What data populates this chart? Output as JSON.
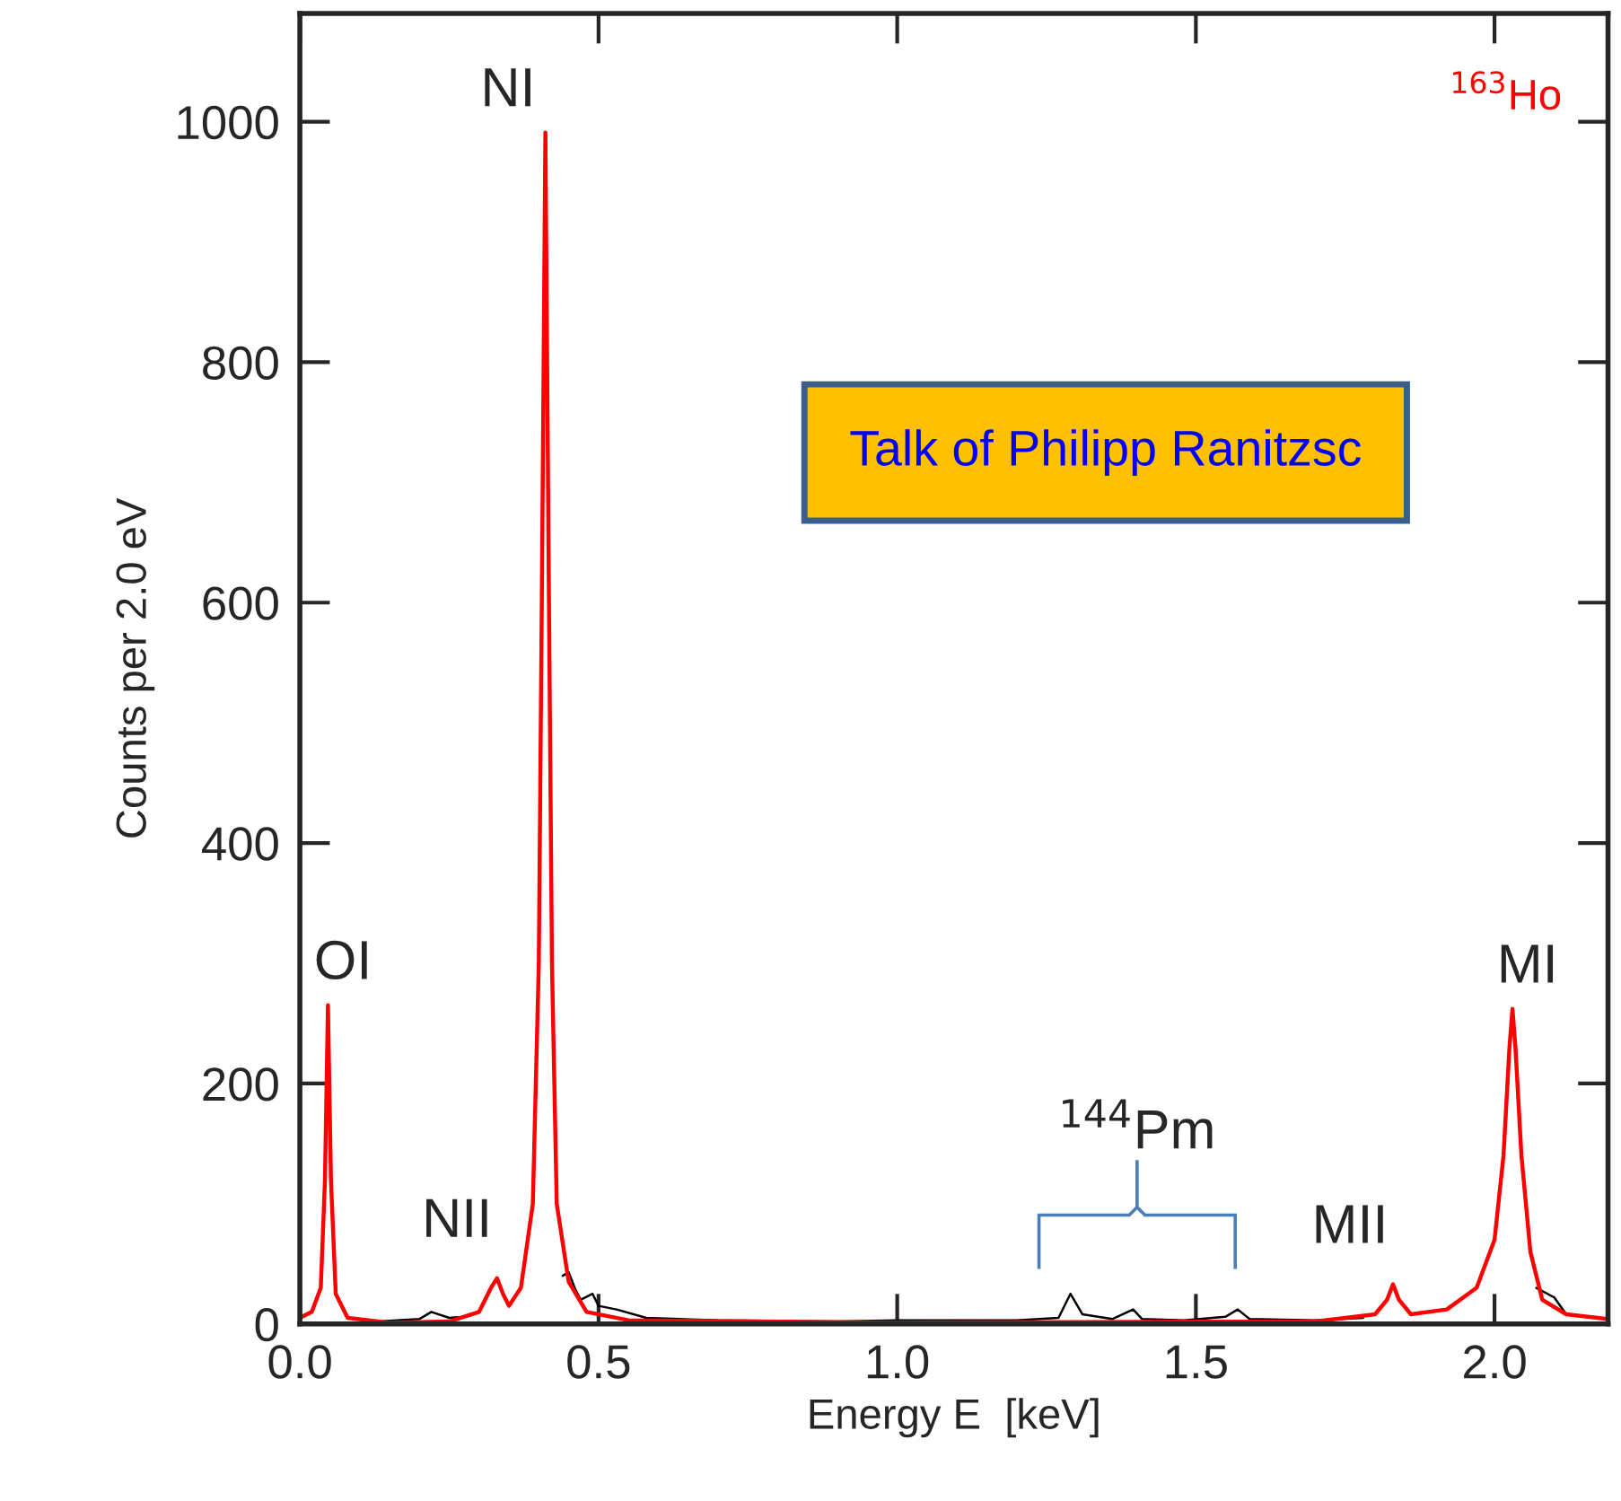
{
  "chart_data": {
    "type": "line",
    "xlabel": "Energy E  [keV]",
    "ylabel": "Counts per 2.0 eV",
    "xlim": [
      0,
      2.19
    ],
    "ylim": [
      0,
      1090
    ],
    "xticks": [
      {
        "value": 0,
        "label": "0.0"
      },
      {
        "value": 0.5,
        "label": "0.5"
      },
      {
        "value": 1,
        "label": "1.0"
      },
      {
        "value": 1.5,
        "label": "1.5"
      },
      {
        "value": 2,
        "label": "2.0"
      }
    ],
    "yticks": [
      0,
      200,
      400,
      600,
      800,
      1000
    ],
    "grid": false,
    "legend": false,
    "marker": "none",
    "line_style": "solid",
    "series": [
      {
        "color": "#000000",
        "x": [
          0.1,
          0.2,
          0.22,
          0.25,
          0.28,
          0.29,
          0.44,
          0.45,
          0.46,
          0.47,
          0.49,
          0.5,
          0.53,
          0.58,
          0.7,
          0.9,
          1.0,
          1.2,
          1.27,
          1.29,
          1.31,
          1.36,
          1.395,
          1.41,
          1.48,
          1.55,
          1.57,
          1.59,
          1.7,
          1.78,
          1.8,
          2.07,
          2.1,
          2.12,
          2.19
        ],
        "values": [
          1,
          4,
          10,
          5,
          6,
          null,
          40,
          43,
          30,
          20,
          25,
          15,
          12,
          5,
          3,
          2,
          3,
          3,
          5,
          25,
          8,
          4,
          12,
          4,
          3,
          6,
          12,
          4,
          3,
          5,
          null,
          30,
          22,
          8,
          4
        ]
      },
      {
        "name": "$^{163}$Ho",
        "color": "#ff0000",
        "x": [
          0.0,
          0.02,
          0.035,
          0.042,
          0.047,
          0.052,
          0.06,
          0.08,
          0.15,
          0.25,
          0.3,
          0.32,
          0.33,
          0.34,
          0.35,
          0.37,
          0.39,
          0.4,
          0.405,
          0.411,
          0.417,
          0.422,
          0.43,
          0.45,
          0.48,
          0.55,
          1.0,
          1.7,
          1.8,
          1.82,
          1.83,
          1.84,
          1.86,
          1.92,
          1.97,
          2.0,
          2.015,
          2.025,
          2.03,
          2.035,
          2.045,
          2.06,
          2.08,
          2.12,
          2.19
        ],
        "values": [
          5,
          10,
          30,
          120,
          265,
          120,
          25,
          5,
          1,
          2,
          10,
          30,
          38,
          25,
          15,
          30,
          100,
          300,
          600,
          991,
          600,
          300,
          100,
          35,
          10,
          3,
          1,
          2,
          8,
          20,
          33,
          20,
          8,
          12,
          30,
          70,
          140,
          230,
          262,
          230,
          140,
          60,
          20,
          8,
          4
        ]
      }
    ],
    "annotations": [
      {
        "text": "OI",
        "x": 0.047,
        "y": 265
      },
      {
        "text": "NI",
        "x": 0.411,
        "y": 991
      },
      {
        "text": "NII",
        "x": 0.33,
        "y": 38
      },
      {
        "text": "MII",
        "x": 1.83,
        "y": 33
      },
      {
        "text": "MI",
        "x": 2.03,
        "y": 262
      },
      "$^{144}$Pm",
      "Talk of Philipp Ranitzsc"
    ]
  }
}
